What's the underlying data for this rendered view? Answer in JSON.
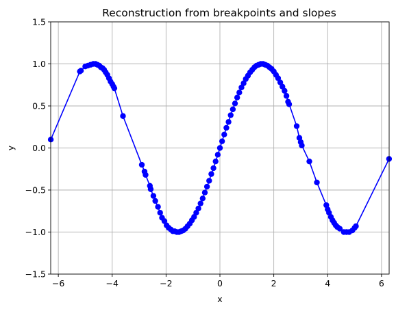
{
  "chart_data": {
    "type": "line",
    "title": "Reconstruction from breakpoints and slopes",
    "xlabel": "x",
    "ylabel": "y",
    "xlim": [
      -6.2832,
      6.2832
    ],
    "ylim": [
      -1.5,
      1.5
    ],
    "xticks": [
      -6,
      -4,
      -2,
      0,
      2,
      4,
      6
    ],
    "xtick_labels": [
      "−6",
      "−4",
      "−2",
      "0",
      "2",
      "4",
      "6"
    ],
    "yticks": [
      -1.5,
      -1.0,
      -0.5,
      0.0,
      0.5,
      1.0,
      1.5
    ],
    "ytick_labels": [
      "−1.5",
      "−1.0",
      "−0.5",
      "0.0",
      "0.5",
      "1.0",
      "1.5"
    ],
    "grid": true,
    "series": [
      {
        "color": "#0000ff",
        "marker": "circle",
        "points": [
          [
            -6.28,
            0.1
          ],
          [
            -5.2,
            0.91
          ],
          [
            -5.16,
            0.92
          ],
          [
            -5.0,
            0.97
          ],
          [
            -4.9,
            0.98
          ],
          [
            -4.8,
            0.99
          ],
          [
            -4.7,
            1.0
          ],
          [
            -4.62,
            1.0
          ],
          [
            -4.55,
            0.99
          ],
          [
            -4.48,
            0.98
          ],
          [
            -4.42,
            0.96
          ],
          [
            -4.36,
            0.95
          ],
          [
            -4.3,
            0.93
          ],
          [
            -4.24,
            0.9
          ],
          [
            -4.18,
            0.87
          ],
          [
            -4.12,
            0.83
          ],
          [
            -4.06,
            0.79
          ],
          [
            -4.0,
            0.76
          ],
          [
            -3.95,
            0.73
          ],
          [
            -3.92,
            0.71
          ],
          [
            -3.6,
            0.38
          ],
          [
            -2.9,
            -0.2
          ],
          [
            -2.8,
            -0.28
          ],
          [
            -2.76,
            -0.32
          ],
          [
            -2.6,
            -0.45
          ],
          [
            -2.57,
            -0.49
          ],
          [
            -2.47,
            -0.57
          ],
          [
            -2.4,
            -0.63
          ],
          [
            -2.3,
            -0.7
          ],
          [
            -2.22,
            -0.77
          ],
          [
            -2.15,
            -0.83
          ],
          [
            -2.06,
            -0.87
          ],
          [
            -1.98,
            -0.92
          ],
          [
            -1.9,
            -0.95
          ],
          [
            -1.82,
            -0.97
          ],
          [
            -1.75,
            -0.99
          ],
          [
            -1.68,
            -0.99
          ],
          [
            -1.6,
            -1.0
          ],
          [
            -1.52,
            -1.0
          ],
          [
            -1.44,
            -0.99
          ],
          [
            -1.36,
            -0.98
          ],
          [
            -1.28,
            -0.96
          ],
          [
            -1.2,
            -0.93
          ],
          [
            -1.12,
            -0.9
          ],
          [
            -1.04,
            -0.86
          ],
          [
            -0.96,
            -0.82
          ],
          [
            -0.88,
            -0.77
          ],
          [
            -0.8,
            -0.72
          ],
          [
            -0.72,
            -0.66
          ],
          [
            -0.64,
            -0.6
          ],
          [
            -0.56,
            -0.53
          ],
          [
            -0.48,
            -0.46
          ],
          [
            -0.4,
            -0.39
          ],
          [
            -0.32,
            -0.31
          ],
          [
            -0.24,
            -0.24
          ],
          [
            -0.16,
            -0.16
          ],
          [
            -0.08,
            -0.08
          ],
          [
            0.0,
            0.0
          ],
          [
            0.08,
            0.08
          ],
          [
            0.16,
            0.16
          ],
          [
            0.24,
            0.24
          ],
          [
            0.32,
            0.31
          ],
          [
            0.4,
            0.39
          ],
          [
            0.48,
            0.46
          ],
          [
            0.56,
            0.53
          ],
          [
            0.64,
            0.6
          ],
          [
            0.72,
            0.66
          ],
          [
            0.8,
            0.72
          ],
          [
            0.88,
            0.77
          ],
          [
            0.96,
            0.82
          ],
          [
            1.04,
            0.86
          ],
          [
            1.12,
            0.9
          ],
          [
            1.2,
            0.93
          ],
          [
            1.28,
            0.96
          ],
          [
            1.36,
            0.98
          ],
          [
            1.44,
            0.99
          ],
          [
            1.52,
            1.0
          ],
          [
            1.6,
            1.0
          ],
          [
            1.68,
            0.99
          ],
          [
            1.76,
            0.98
          ],
          [
            1.84,
            0.96
          ],
          [
            1.92,
            0.94
          ],
          [
            2.0,
            0.91
          ],
          [
            2.08,
            0.87
          ],
          [
            2.16,
            0.83
          ],
          [
            2.24,
            0.78
          ],
          [
            2.32,
            0.73
          ],
          [
            2.4,
            0.68
          ],
          [
            2.47,
            0.62
          ],
          [
            2.53,
            0.55
          ],
          [
            2.57,
            0.52
          ],
          [
            2.85,
            0.26
          ],
          [
            2.95,
            0.12
          ],
          [
            3.0,
            0.07
          ],
          [
            3.04,
            0.03
          ],
          [
            3.32,
            -0.16
          ],
          [
            3.6,
            -0.41
          ],
          [
            3.95,
            -0.68
          ],
          [
            4.0,
            -0.73
          ],
          [
            4.05,
            -0.77
          ],
          [
            4.12,
            -0.82
          ],
          [
            4.18,
            -0.86
          ],
          [
            4.24,
            -0.89
          ],
          [
            4.3,
            -0.92
          ],
          [
            4.36,
            -0.94
          ],
          [
            4.45,
            -0.96
          ],
          [
            4.6,
            -1.0
          ],
          [
            4.7,
            -1.0
          ],
          [
            4.8,
            -1.0
          ],
          [
            4.92,
            -0.98
          ],
          [
            5.0,
            -0.95
          ],
          [
            5.05,
            -0.93
          ],
          [
            6.28,
            -0.13
          ]
        ]
      }
    ]
  }
}
